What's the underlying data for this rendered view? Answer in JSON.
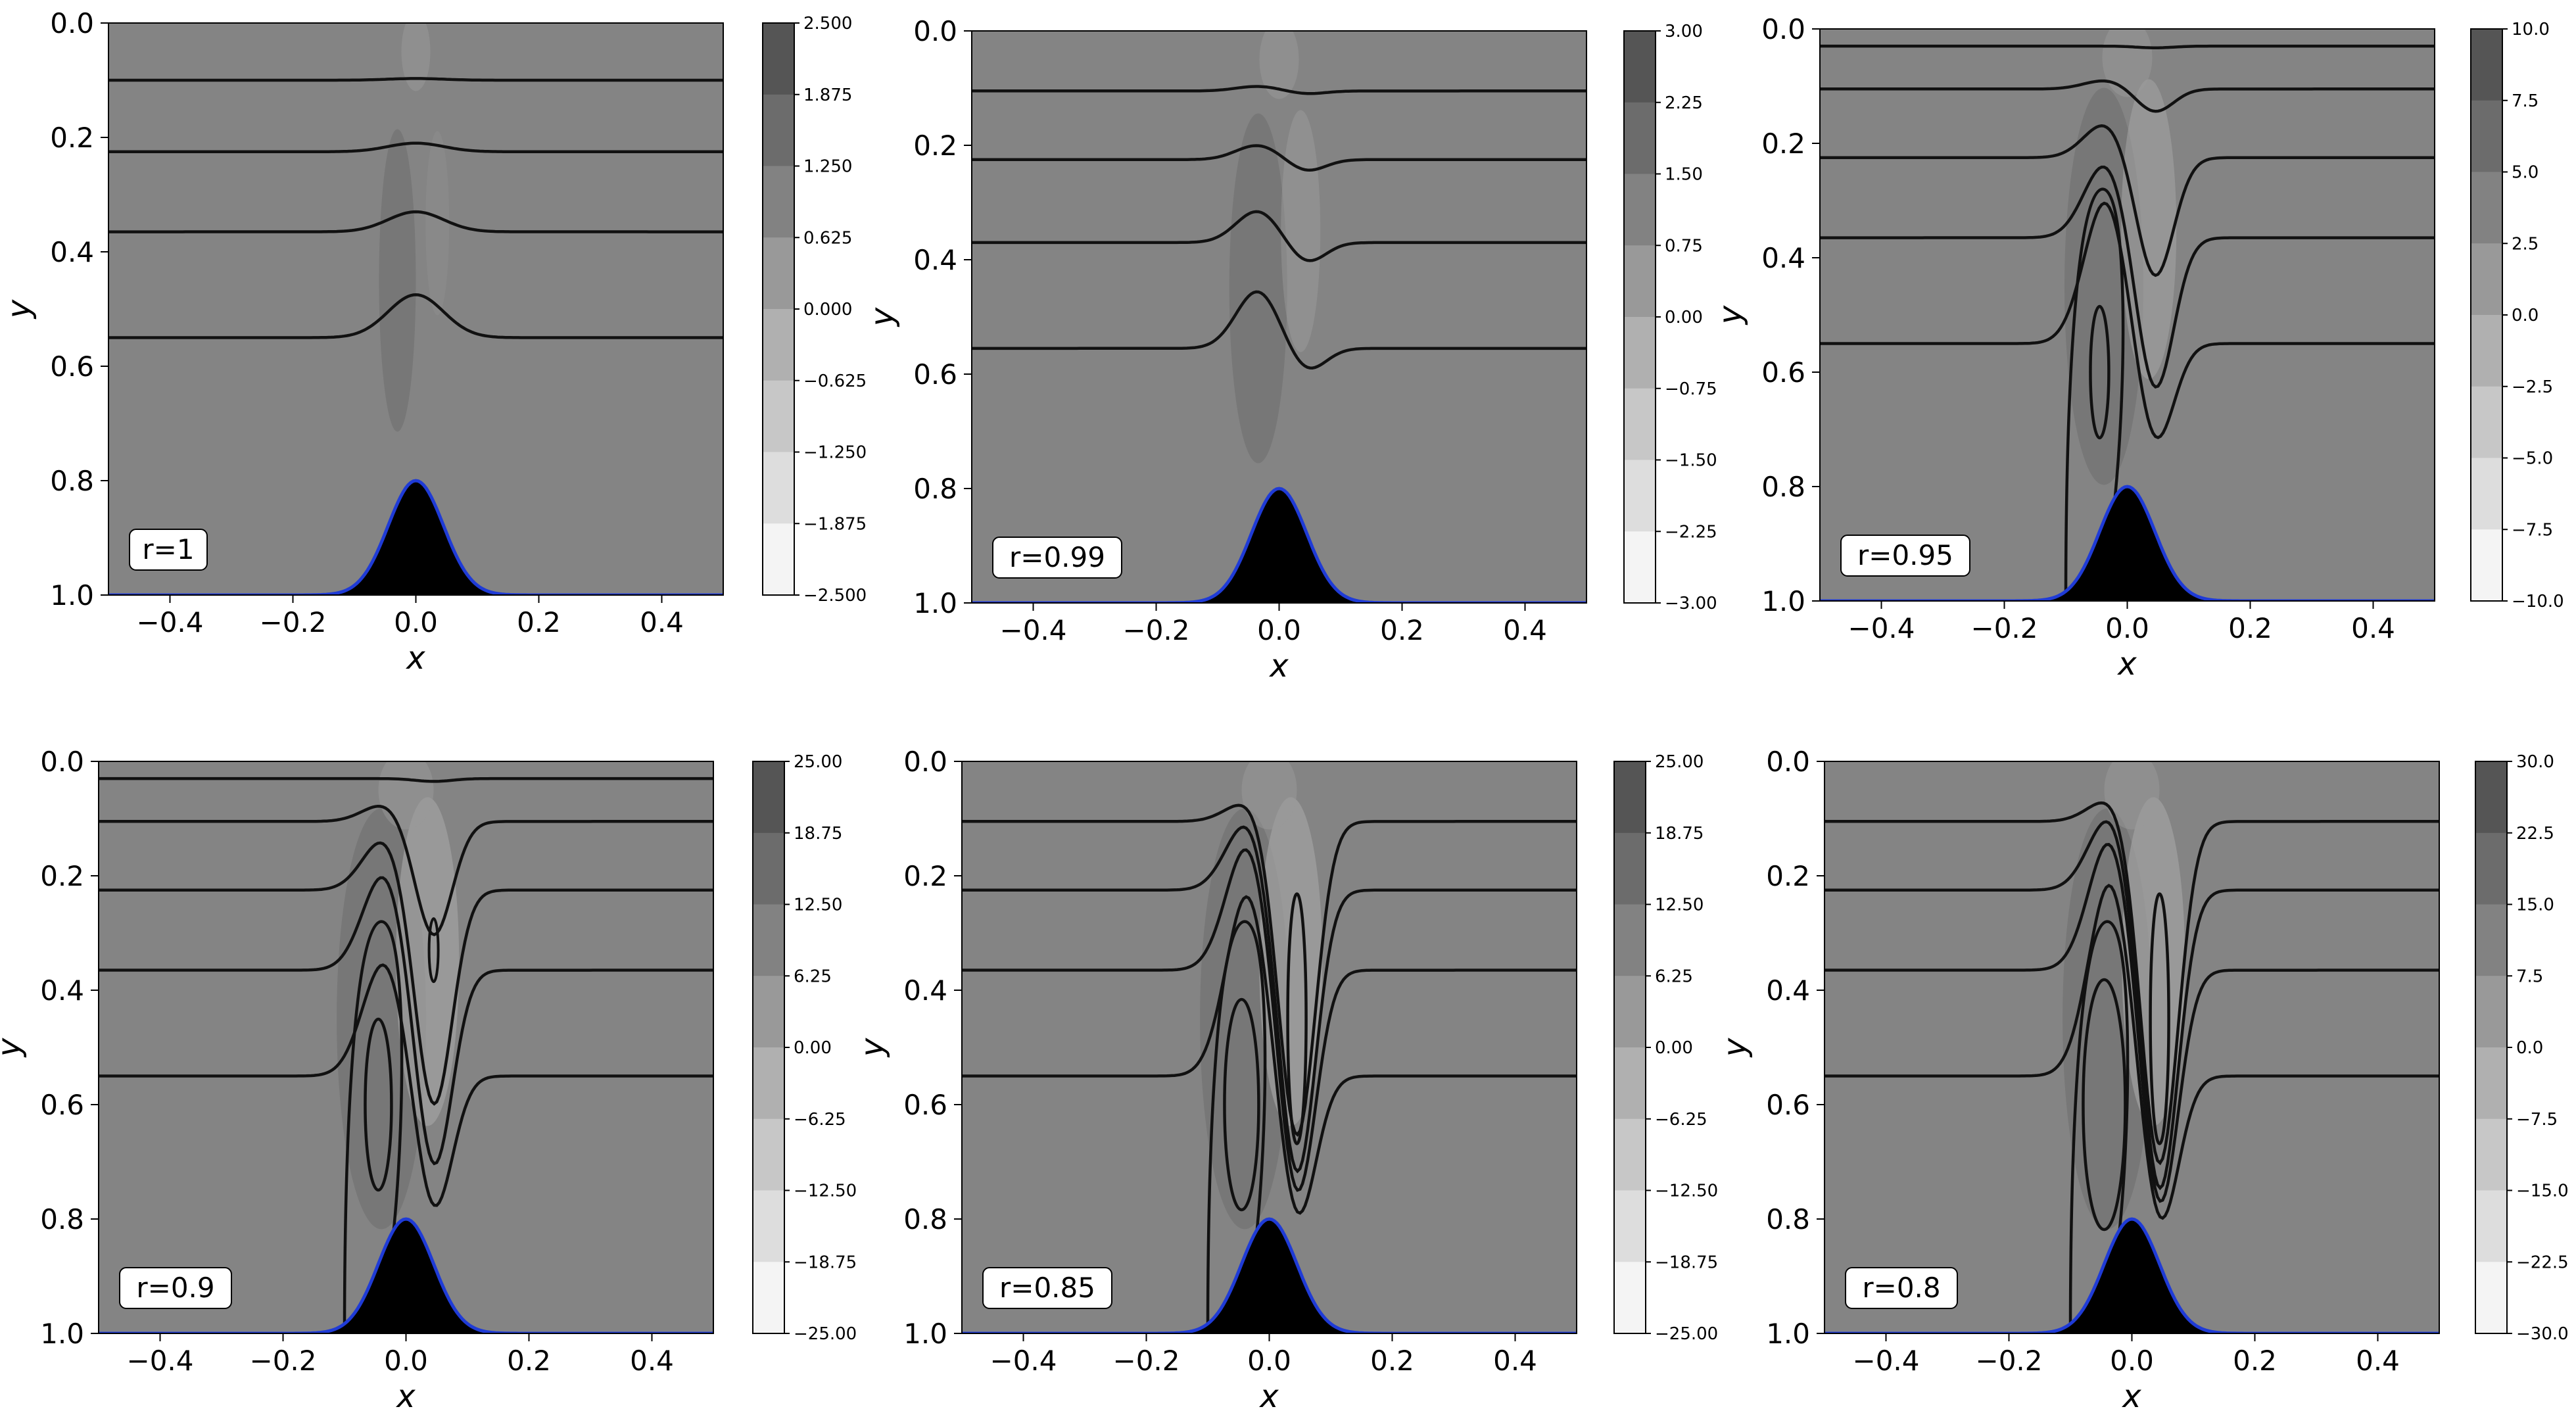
{
  "figure": {
    "background": "#ffffff",
    "panel_fill": "#848484",
    "hill_fill": "#000000",
    "hill_outline": "#1f3bd6",
    "streamline_color": "#111111"
  },
  "chart_data": [
    {
      "type": "contour",
      "annotation": "r=1",
      "xlabel": "x",
      "ylabel": "y",
      "xlim": [
        -0.5,
        0.5
      ],
      "ylim": [
        1.0,
        0.0
      ],
      "y_inverted": true,
      "xticks": [
        "−0.4",
        "−0.2",
        "0.0",
        "0.2",
        "0.4"
      ],
      "yticks": [
        "0.0",
        "0.2",
        "0.4",
        "0.6",
        "0.8",
        "1.0"
      ],
      "colorbar": {
        "ticks": [
          "2.500",
          "1.875",
          "1.250",
          "0.625",
          "0.000",
          "−0.625",
          "−1.250",
          "−1.875",
          "−2.500"
        ],
        "range": [
          -2.5,
          2.5
        ]
      },
      "hill": {
        "center": 0.0,
        "peak_y": 0.8,
        "base_y": 1.0,
        "width": 0.045
      },
      "streamlines": [
        {
          "y0": 0.1,
          "bump": -0.003
        },
        {
          "y0": 0.225,
          "bump": -0.015
        },
        {
          "y0": 0.365,
          "bump": -0.035
        },
        {
          "y0": 0.55,
          "bump": -0.075
        }
      ]
    },
    {
      "type": "contour",
      "annotation": "r=0.99",
      "xlabel": "x",
      "ylabel": "y",
      "xlim": [
        -0.5,
        0.5
      ],
      "ylim": [
        1.0,
        0.0
      ],
      "y_inverted": true,
      "xticks": [
        "−0.4",
        "−0.2",
        "0.0",
        "0.2",
        "0.4"
      ],
      "yticks": [
        "0.0",
        "0.2",
        "0.4",
        "0.6",
        "0.8",
        "1.0"
      ],
      "colorbar": {
        "ticks": [
          "3.00",
          "2.25",
          "1.50",
          "0.75",
          "0.00",
          "−0.75",
          "−1.50",
          "−2.25",
          "−3.00"
        ],
        "range": [
          -3,
          3
        ]
      },
      "hill": {
        "center": 0.0,
        "peak_y": 0.8,
        "base_y": 1.0,
        "width": 0.045
      },
      "streamlines": [
        {
          "y0": 0.105,
          "dip": {
            "up": 0.008,
            "down": 0.005
          }
        },
        {
          "y0": 0.225,
          "dip": {
            "up": 0.025,
            "down": 0.02
          }
        },
        {
          "y0": 0.37,
          "dip": {
            "up": 0.055,
            "down": 0.035
          }
        },
        {
          "y0": 0.555,
          "dip": {
            "up": 0.1,
            "down": 0.04
          }
        }
      ]
    },
    {
      "type": "contour",
      "annotation": "r=0.95",
      "xlabel": "x",
      "ylabel": "y",
      "xlim": [
        -0.5,
        0.5
      ],
      "ylim": [
        1.0,
        0.0
      ],
      "y_inverted": true,
      "xticks": [
        "−0.4",
        "−0.2",
        "0.0",
        "0.2",
        "0.4"
      ],
      "yticks": [
        "0.0",
        "0.2",
        "0.4",
        "0.6",
        "0.8",
        "1.0"
      ],
      "colorbar": {
        "ticks": [
          "10.0",
          "7.5",
          "5.0",
          "2.5",
          "0.0",
          "−2.5",
          "−5.0",
          "−7.5",
          "−10.0"
        ],
        "range": [
          -10,
          10
        ]
      },
      "hill": {
        "center": 0.0,
        "peak_y": 0.8,
        "base_y": 1.0,
        "width": 0.045
      },
      "streamlines": [
        {
          "y0": 0.03,
          "dip": {
            "up": 0.0,
            "down": 0.003
          }
        },
        {
          "y0": 0.105,
          "dip": {
            "up": 0.015,
            "down": 0.04
          }
        },
        {
          "y0": 0.225,
          "dip": {
            "up": 0.06,
            "down": 0.21
          }
        },
        {
          "y0": 0.365,
          "dip": {
            "up": 0.13,
            "down": 0.27
          }
        },
        {
          "y0": 0.55,
          "dip": {
            "up": 0.25,
            "down": 0.18
          }
        }
      ]
    },
    {
      "type": "contour",
      "annotation": "r=0.9",
      "xlabel": "x",
      "ylabel": "y",
      "xlim": [
        -0.5,
        0.5
      ],
      "ylim": [
        1.0,
        0.0
      ],
      "y_inverted": true,
      "xticks": [
        "−0.4",
        "−0.2",
        "0.0",
        "0.2",
        "0.4"
      ],
      "yticks": [
        "0.0",
        "0.2",
        "0.4",
        "0.6",
        "0.8",
        "1.0"
      ],
      "colorbar": {
        "ticks": [
          "25.00",
          "18.75",
          "12.50",
          "6.25",
          "0.00",
          "−6.25",
          "−12.50",
          "−18.75",
          "−25.00"
        ],
        "range": [
          -25,
          25
        ]
      },
      "hill": {
        "center": 0.0,
        "peak_y": 0.8,
        "base_y": 1.0,
        "width": 0.045
      },
      "streamlines": [
        {
          "y0": 0.03,
          "dip": {
            "up": 0.0,
            "down": 0.005
          }
        },
        {
          "y0": 0.105,
          "dip": {
            "up": 0.03,
            "down": 0.2
          }
        },
        {
          "y0": 0.225,
          "dip": {
            "up": 0.09,
            "down": 0.38
          }
        },
        {
          "y0": 0.365,
          "dip": {
            "up": 0.17,
            "down": 0.35
          }
        },
        {
          "y0": 0.55,
          "dip": {
            "up": 0.2,
            "down": 0.24
          }
        }
      ]
    },
    {
      "type": "contour",
      "annotation": "r=0.85",
      "xlabel": "x",
      "ylabel": "y",
      "xlim": [
        -0.5,
        0.5
      ],
      "ylim": [
        1.0,
        0.0
      ],
      "y_inverted": true,
      "xticks": [
        "−0.4",
        "−0.2",
        "0.0",
        "0.2",
        "0.4"
      ],
      "yticks": [
        "0.0",
        "0.2",
        "0.4",
        "0.6",
        "0.8",
        "1.0"
      ],
      "colorbar": {
        "ticks": [
          "25.00",
          "18.75",
          "12.50",
          "6.25",
          "0.00",
          "−6.25",
          "−12.50",
          "−18.75",
          "−25.00"
        ],
        "range": [
          -25,
          25
        ]
      },
      "hill": {
        "center": 0.0,
        "peak_y": 0.8,
        "base_y": 1.0,
        "width": 0.045
      },
      "streamlines": [
        {
          "y0": 0.105,
          "dip": {
            "up": 0.035,
            "down": 0.55
          }
        },
        {
          "y0": 0.225,
          "dip": {
            "up": 0.12,
            "down": 0.5
          }
        },
        {
          "y0": 0.365,
          "dip": {
            "up": 0.22,
            "down": 0.4
          }
        },
        {
          "y0": 0.55,
          "dip": {
            "up": 0.32,
            "down": 0.26
          }
        }
      ]
    },
    {
      "type": "contour",
      "annotation": "r=0.8",
      "xlabel": "x",
      "ylabel": "y",
      "xlim": [
        -0.5,
        0.5
      ],
      "ylim": [
        1.0,
        0.0
      ],
      "y_inverted": true,
      "xticks": [
        "−0.4",
        "−0.2",
        "0.0",
        "0.2",
        "0.4"
      ],
      "yticks": [
        "0.0",
        "0.2",
        "0.4",
        "0.6",
        "0.8",
        "1.0"
      ],
      "colorbar": {
        "ticks": [
          "30.0",
          "22.5",
          "15.0",
          "7.5",
          "0.0",
          "−7.5",
          "−15.0",
          "−22.5",
          "−30.0"
        ],
        "range": [
          -30,
          30
        ]
      },
      "hill": {
        "center": 0.0,
        "peak_y": 0.8,
        "base_y": 1.0,
        "width": 0.045
      },
      "streamlines": [
        {
          "y0": 0.105,
          "dip": {
            "up": 0.04,
            "down": 0.6
          }
        },
        {
          "y0": 0.225,
          "dip": {
            "up": 0.13,
            "down": 0.53
          }
        },
        {
          "y0": 0.365,
          "dip": {
            "up": 0.23,
            "down": 0.42
          }
        },
        {
          "y0": 0.55,
          "dip": {
            "up": 0.34,
            "down": 0.27
          }
        }
      ]
    }
  ]
}
